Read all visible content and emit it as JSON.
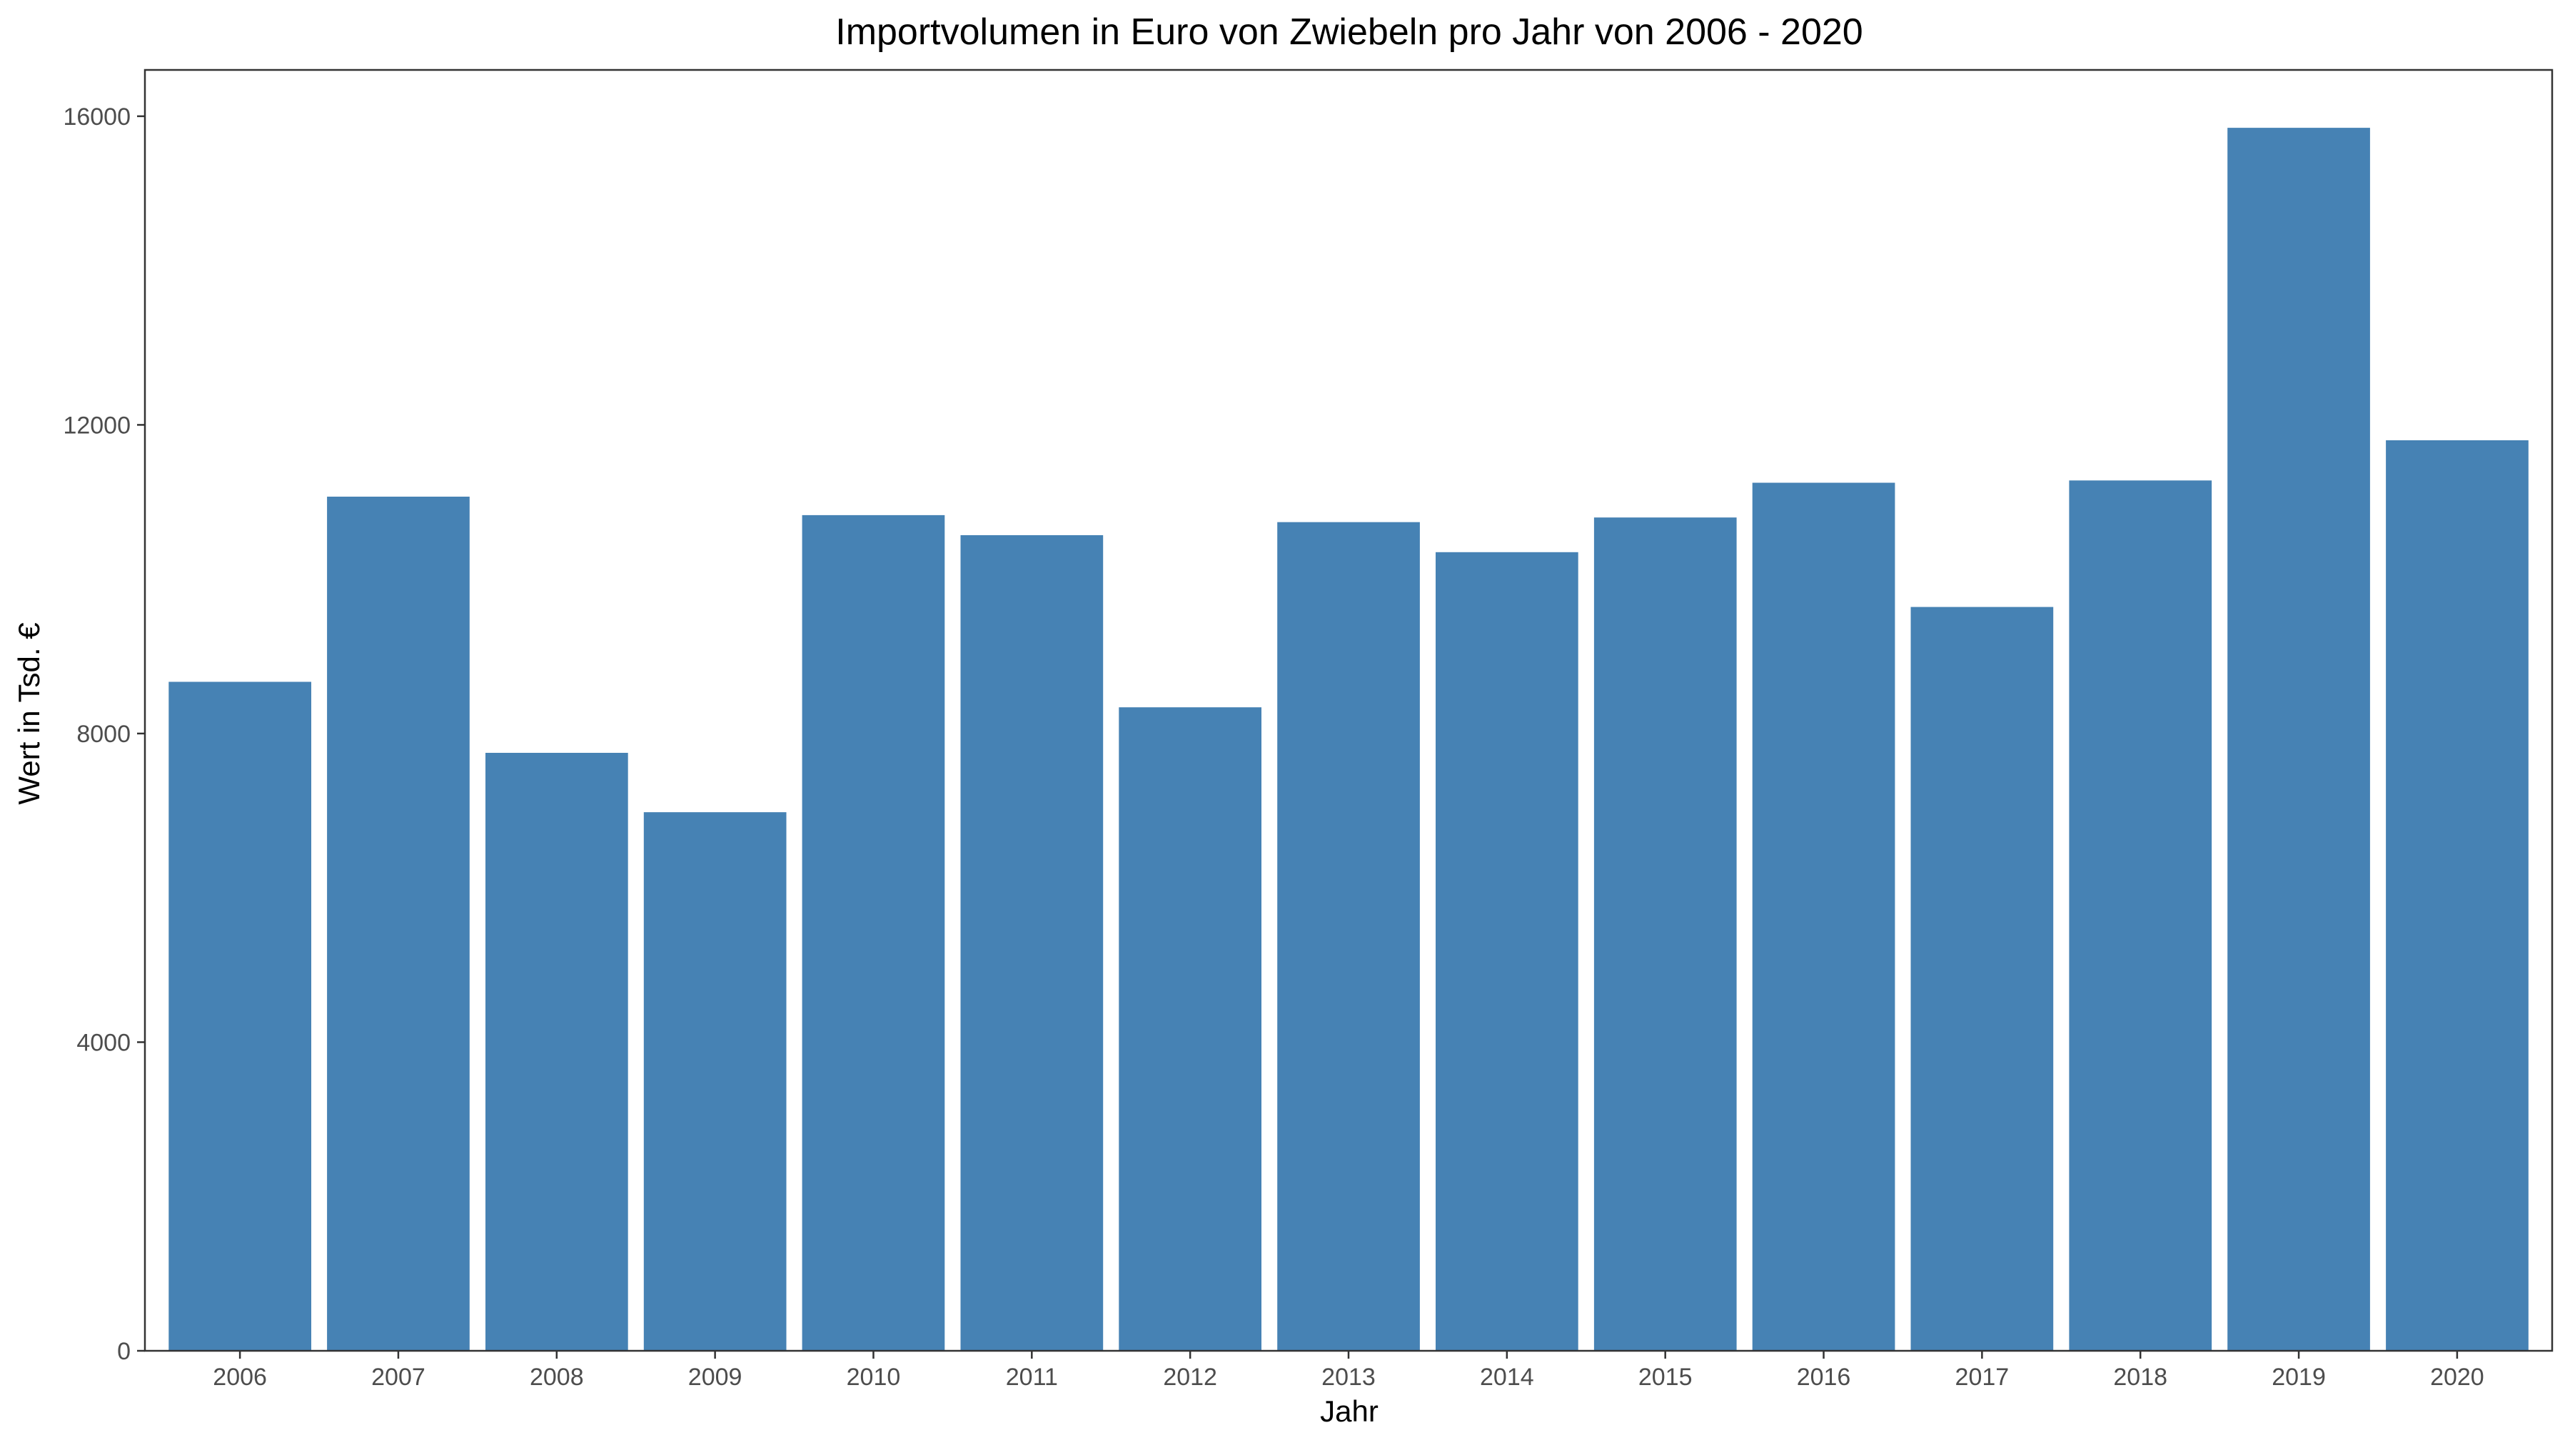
{
  "chart_data": {
    "type": "bar",
    "title": "Importvolumen in Euro von Zwiebeln pro Jahr von 2006 - 2020",
    "xlabel": "Jahr",
    "ylabel": "Wert in Tsd. €",
    "categories": [
      "2006",
      "2007",
      "2008",
      "2009",
      "2010",
      "2011",
      "2012",
      "2013",
      "2014",
      "2015",
      "2016",
      "2017",
      "2018",
      "2019",
      "2020"
    ],
    "values": [
      8670,
      11070,
      7750,
      6980,
      10830,
      10570,
      8340,
      10740,
      10350,
      10800,
      11250,
      9640,
      11280,
      15850,
      11800
    ],
    "ylim": [
      0,
      16600
    ],
    "yticks": [
      0,
      4000,
      8000,
      12000,
      16000
    ],
    "ytick_labels": [
      "0",
      "4000",
      "8000",
      "12000",
      "16000"
    ],
    "bar_color": "#4682b4",
    "grid": false,
    "legend": "none"
  }
}
